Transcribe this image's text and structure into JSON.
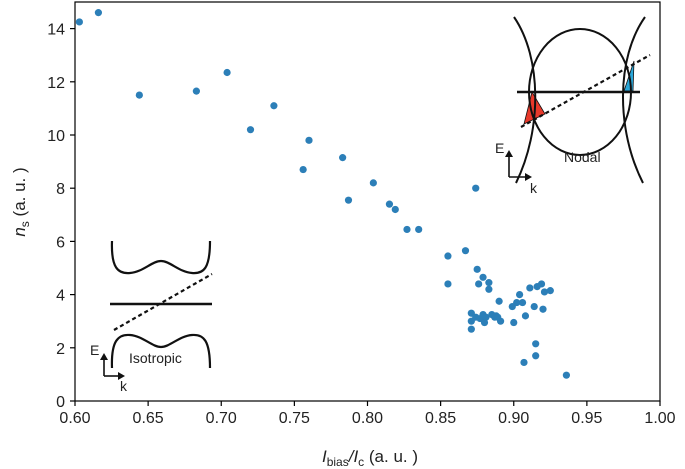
{
  "chart_data": {
    "type": "scatter",
    "xlabel": {
      "main": "I",
      "sub": "bias",
      "mid": "/I",
      "sub2": "c",
      "unit": " (a. u. )"
    },
    "ylabel": {
      "main": "n",
      "sub": "s",
      "unit": " (a. u. )"
    },
    "xlim": [
      0.6,
      1.0
    ],
    "ylim": [
      0,
      15
    ],
    "xticks": [
      "0.60",
      "0.65",
      "0.70",
      "0.75",
      "0.80",
      "0.85",
      "0.90",
      "0.95",
      "1.00"
    ],
    "yticks": [
      "0",
      "2",
      "4",
      "6",
      "8",
      "10",
      "12",
      "14"
    ],
    "marker_color": "#2c7fb8",
    "points": [
      [
        0.603,
        14.25
      ],
      [
        0.616,
        14.6
      ],
      [
        0.644,
        11.5
      ],
      [
        0.683,
        11.65
      ],
      [
        0.704,
        12.35
      ],
      [
        0.72,
        10.2
      ],
      [
        0.736,
        11.1
      ],
      [
        0.756,
        8.7
      ],
      [
        0.76,
        9.8
      ],
      [
        0.783,
        9.15
      ],
      [
        0.787,
        7.55
      ],
      [
        0.804,
        8.2
      ],
      [
        0.815,
        7.4
      ],
      [
        0.819,
        7.2
      ],
      [
        0.827,
        6.45
      ],
      [
        0.835,
        6.45
      ],
      [
        0.855,
        5.45
      ],
      [
        0.855,
        4.4
      ],
      [
        0.867,
        5.65
      ],
      [
        0.874,
        8.0
      ],
      [
        0.871,
        3.3
      ],
      [
        0.871,
        3.0
      ],
      [
        0.871,
        2.7
      ],
      [
        0.874,
        3.15
      ],
      [
        0.875,
        4.95
      ],
      [
        0.876,
        4.4
      ],
      [
        0.877,
        3.1
      ],
      [
        0.879,
        3.25
      ],
      [
        0.879,
        4.65
      ],
      [
        0.88,
        2.95
      ],
      [
        0.881,
        3.15
      ],
      [
        0.883,
        4.2
      ],
      [
        0.883,
        4.45
      ],
      [
        0.885,
        3.25
      ],
      [
        0.887,
        3.15
      ],
      [
        0.888,
        3.2
      ],
      [
        0.889,
        3.15
      ],
      [
        0.89,
        3.75
      ],
      [
        0.891,
        3.0
      ],
      [
        0.899,
        3.55
      ],
      [
        0.9,
        2.95
      ],
      [
        0.902,
        3.7
      ],
      [
        0.904,
        4.0
      ],
      [
        0.906,
        3.7
      ],
      [
        0.907,
        1.45
      ],
      [
        0.908,
        3.2
      ],
      [
        0.911,
        4.25
      ],
      [
        0.914,
        3.55
      ],
      [
        0.915,
        2.15
      ],
      [
        0.915,
        1.7
      ],
      [
        0.916,
        4.3
      ],
      [
        0.919,
        4.4
      ],
      [
        0.92,
        3.45
      ],
      [
        0.921,
        4.1
      ],
      [
        0.925,
        4.15
      ],
      [
        0.936,
        0.97
      ]
    ],
    "insets": [
      {
        "label": "Isotropic",
        "e_label": "E",
        "k_label": "k"
      },
      {
        "label": "Nodal",
        "e_label": "E",
        "k_label": "k"
      }
    ],
    "inset_colors": {
      "nodal_left_fill": "#e8392b",
      "nodal_right_fill": "#2aa7d9"
    }
  }
}
